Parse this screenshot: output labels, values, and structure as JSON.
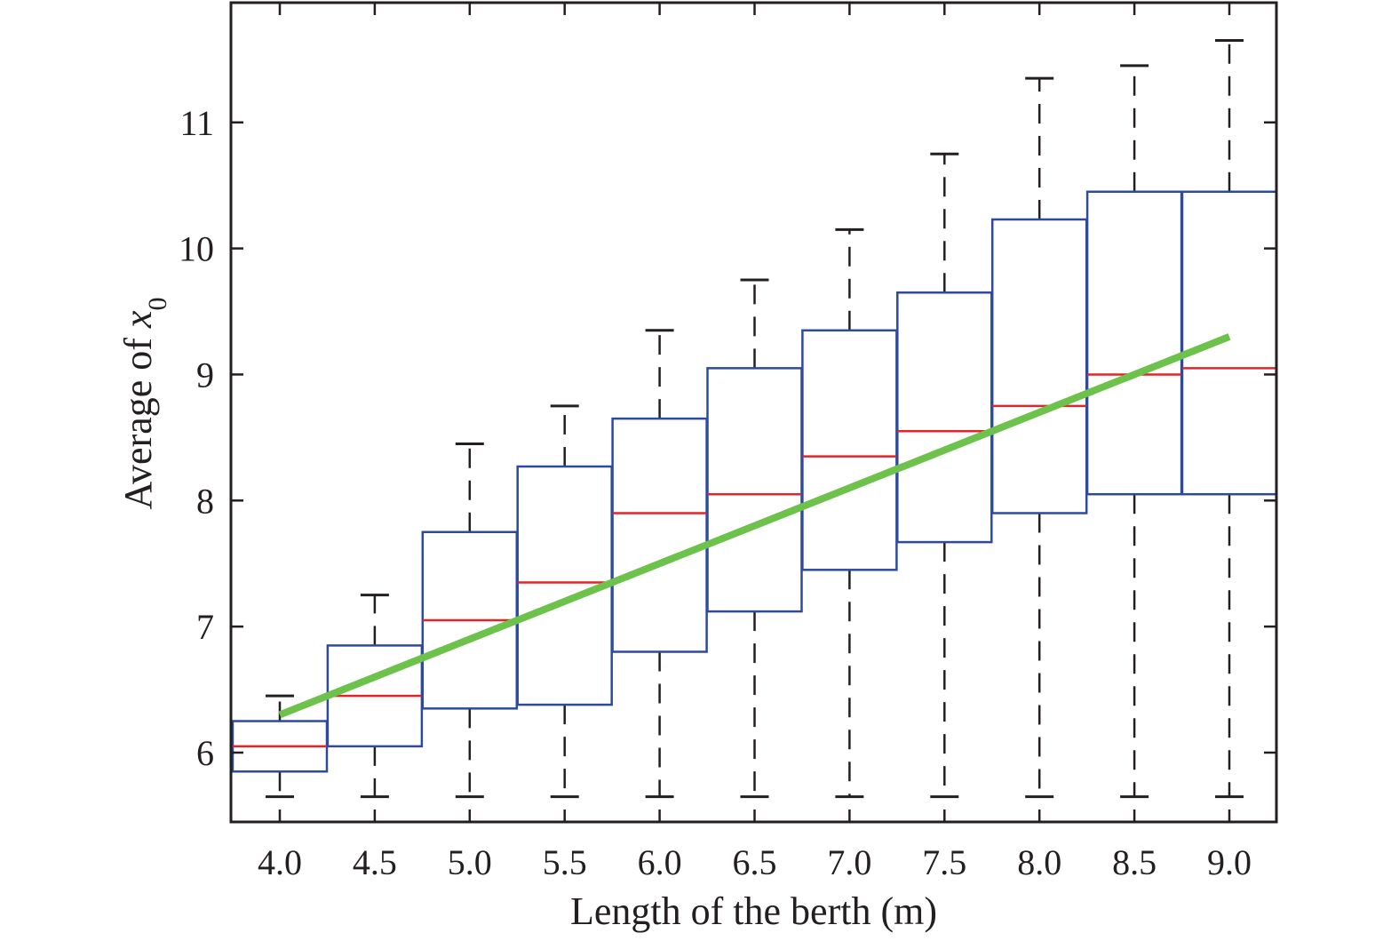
{
  "chart_data": {
    "type": "box",
    "xlabel": "Length of the berth (m)",
    "ylabel": {
      "prefix": "Average of ",
      "var": "x",
      "sub": "0"
    },
    "categories": [
      "4.0",
      "4.5",
      "5.0",
      "5.5",
      "6.0",
      "6.5",
      "7.0",
      "7.5",
      "8.0",
      "8.5",
      "9.0"
    ],
    "ylim": [
      5.45,
      11.95
    ],
    "yticks": [
      "6",
      "7",
      "8",
      "9",
      "10",
      "11"
    ],
    "grid": false,
    "boxes": [
      {
        "whisker_low": 5.65,
        "q1": 5.85,
        "median": 6.05,
        "q3": 6.25,
        "whisker_high": 6.45
      },
      {
        "whisker_low": 5.65,
        "q1": 6.05,
        "median": 6.45,
        "q3": 6.85,
        "whisker_high": 7.25
      },
      {
        "whisker_low": 5.65,
        "q1": 6.35,
        "median": 7.05,
        "q3": 7.75,
        "whisker_high": 8.45
      },
      {
        "whisker_low": 5.65,
        "q1": 6.38,
        "median": 7.35,
        "q3": 8.27,
        "whisker_high": 8.75
      },
      {
        "whisker_low": 5.65,
        "q1": 6.8,
        "median": 7.9,
        "q3": 8.65,
        "whisker_high": 9.35
      },
      {
        "whisker_low": 5.65,
        "q1": 7.12,
        "median": 8.05,
        "q3": 9.05,
        "whisker_high": 9.75
      },
      {
        "whisker_low": 5.65,
        "q1": 7.45,
        "median": 8.35,
        "q3": 9.35,
        "whisker_high": 10.15
      },
      {
        "whisker_low": 5.65,
        "q1": 7.67,
        "median": 8.55,
        "q3": 9.65,
        "whisker_high": 10.75
      },
      {
        "whisker_low": 5.65,
        "q1": 7.9,
        "median": 8.75,
        "q3": 10.23,
        "whisker_high": 11.35
      },
      {
        "whisker_low": 5.65,
        "q1": 8.05,
        "median": 9.0,
        "q3": 10.45,
        "whisker_high": 11.45
      },
      {
        "whisker_low": 5.65,
        "q1": 8.05,
        "median": 9.05,
        "q3": 10.45,
        "whisker_high": 11.65
      }
    ],
    "trend_line": {
      "x": [
        "4.0",
        "9.0"
      ],
      "y": [
        6.3,
        9.3
      ]
    },
    "colors": {
      "box": "#2e4a9e",
      "median": "#e0262b",
      "whisker": "#231f20",
      "trend": "#6cc24a",
      "axis": "#231f20"
    }
  }
}
